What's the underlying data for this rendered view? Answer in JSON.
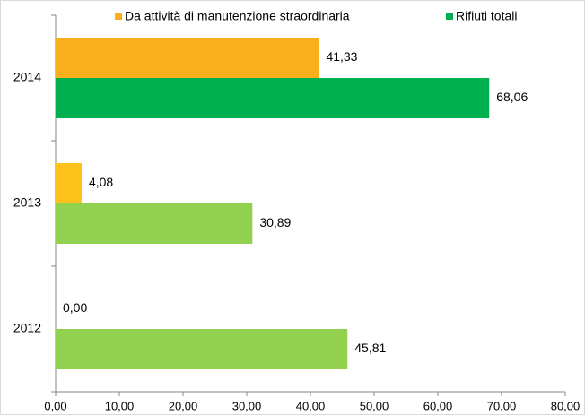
{
  "chart_data": {
    "type": "hbar",
    "categories": [
      "2012",
      "2013",
      "2014"
    ],
    "series": [
      {
        "name": "Da attività di manutenzione straordinaria",
        "color": "#f9ae1b",
        "colors": [
          "#ffc21c",
          "#ffc21c",
          "#f9ae1b"
        ],
        "values": [
          0,
          4.08,
          41.33
        ],
        "value_labels": [
          "0,00",
          "4,08",
          "41,33"
        ]
      },
      {
        "name": "Rifiuti totali",
        "color": "#00b050",
        "colors": [
          "#92d050",
          "#92d050",
          "#00b050"
        ],
        "values": [
          45.81,
          30.89,
          68.06
        ],
        "value_labels": [
          "45,81",
          "30,89",
          "68,06"
        ]
      }
    ],
    "xlim": [
      0,
      80
    ],
    "xticks": [
      {
        "value": 0,
        "label": "0,00"
      },
      {
        "value": 10,
        "label": "10,00"
      },
      {
        "value": 20,
        "label": "20,00"
      },
      {
        "value": 30,
        "label": "30,00"
      },
      {
        "value": 40,
        "label": "40,00"
      },
      {
        "value": 50,
        "label": "50,00"
      },
      {
        "value": 60,
        "label": "60,00"
      },
      {
        "value": 70,
        "label": "70,00"
      },
      {
        "value": 80,
        "label": "80,00"
      }
    ],
    "legend": "top"
  }
}
